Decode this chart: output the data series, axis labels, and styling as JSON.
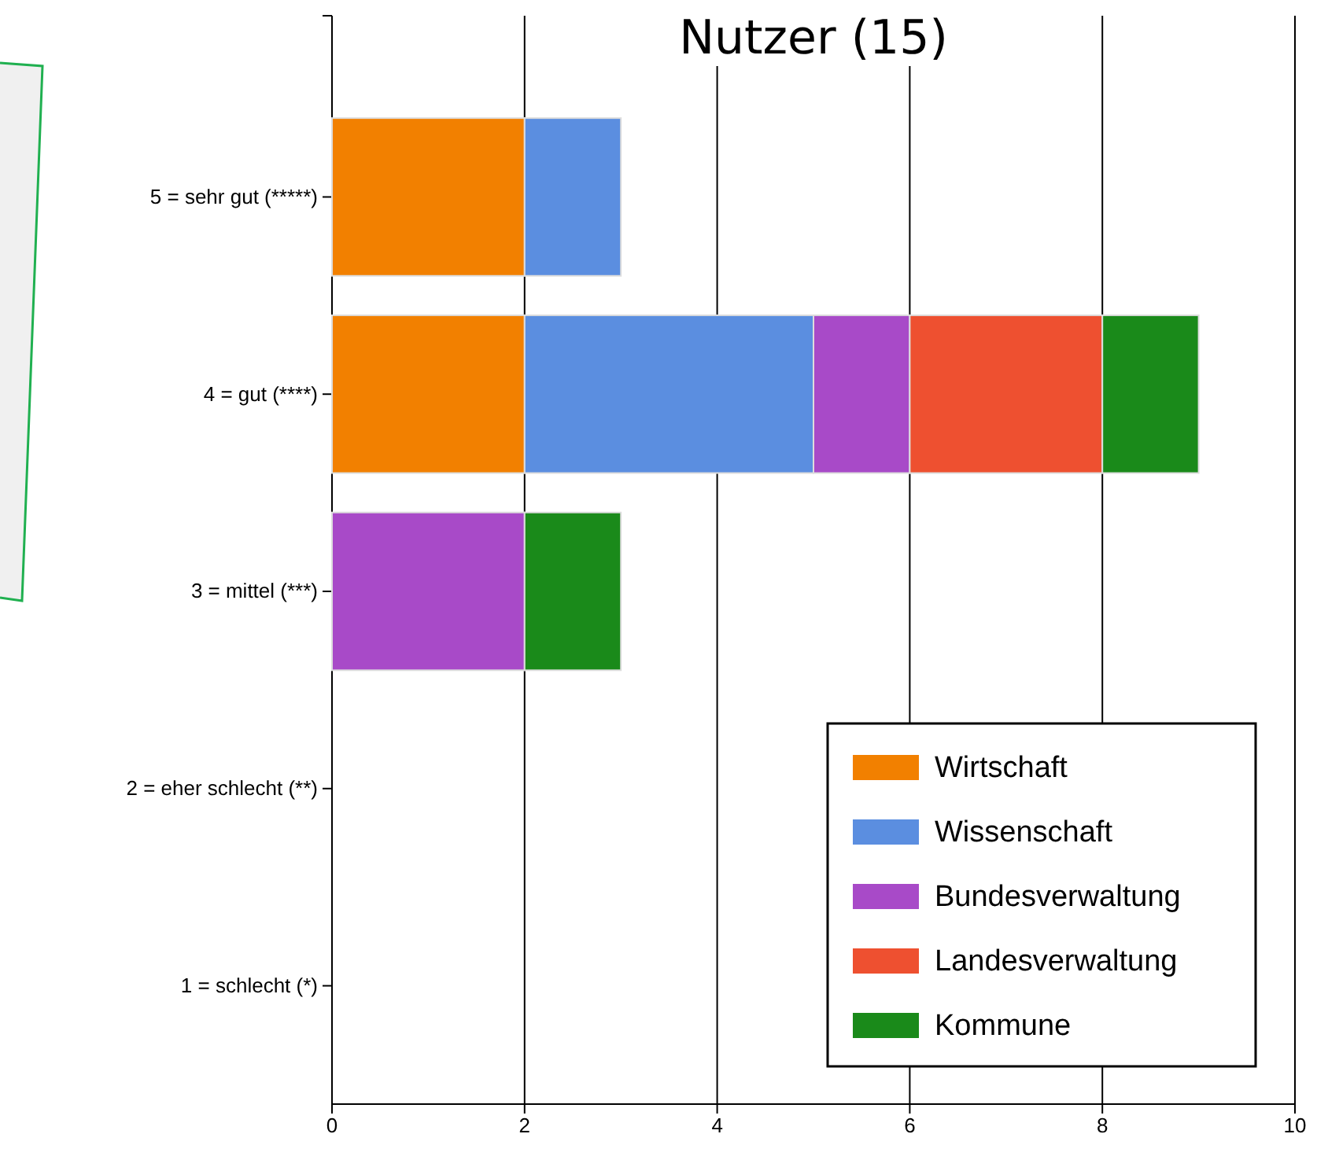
{
  "chart_data": {
    "type": "bar",
    "title": "Nutzer (15)",
    "orientation": "horizontal",
    "stacked": true,
    "categories": [
      "5 = sehr gut (*****)",
      "4 = gut (****)",
      "3 = mittel (***)",
      "2 = eher schlecht (**)",
      "1 = schlecht (*)"
    ],
    "series": [
      {
        "name": "Wirtschaft",
        "color": "#f28000",
        "values": [
          2,
          2,
          0,
          0,
          0
        ]
      },
      {
        "name": "Wissenschaft",
        "color": "#5b8ee0",
        "values": [
          1,
          3,
          0,
          0,
          0
        ]
      },
      {
        "name": "Bundesverwaltung",
        "color": "#a84ac8",
        "values": [
          0,
          1,
          2,
          0,
          0
        ]
      },
      {
        "name": "Landesverwaltung",
        "color": "#ee5030",
        "values": [
          0,
          2,
          0,
          0,
          0
        ]
      },
      {
        "name": "Kommune",
        "color": "#1a8a1a",
        "values": [
          0,
          1,
          1,
          0,
          0
        ]
      }
    ],
    "xlim": [
      0,
      10
    ],
    "xticks": [
      0,
      2,
      4,
      6,
      8,
      10
    ],
    "grid": "x",
    "legend": "bottom right"
  }
}
